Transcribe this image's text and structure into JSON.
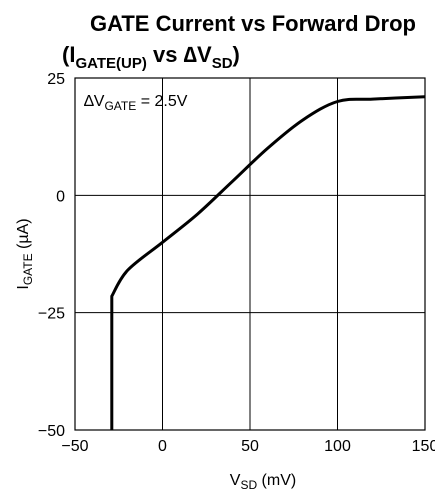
{
  "chart_data": {
    "type": "line",
    "title": {
      "line1": "GATE Current vs Forward Drop",
      "line2_open": "(I",
      "line2_sub1": "GATE(UP)",
      "line2_mid": " vs ∆V",
      "line2_sub2": "SD",
      "line2_close": ")"
    },
    "xlabel": {
      "main": "V",
      "sub": "SD",
      "unit": " (mV)"
    },
    "ylabel": {
      "main": "I",
      "sub": "GATE",
      "unit": " (µA)"
    },
    "annotation": {
      "main": "∆V",
      "sub": "GATE",
      "rest": " = 2.5V"
    },
    "xlim": [
      -50,
      150
    ],
    "ylim": [
      -50,
      25
    ],
    "x_ticks": [
      -50,
      0,
      50,
      100,
      150
    ],
    "x_tick_labels": [
      "−50",
      "0",
      "50",
      "100",
      "150"
    ],
    "y_ticks": [
      25,
      0,
      -25,
      -50
    ],
    "y_tick_labels": [
      "25",
      "0",
      "−25",
      "−50"
    ],
    "grid": true,
    "series": [
      {
        "x": [
          -29,
          -29,
          -20,
          0,
          20,
          40,
          60,
          80,
          100,
          120,
          150
        ],
        "y": [
          -50,
          -21.5,
          -16,
          -10,
          -4,
          3,
          10,
          16,
          20,
          20.5,
          21
        ]
      }
    ]
  }
}
